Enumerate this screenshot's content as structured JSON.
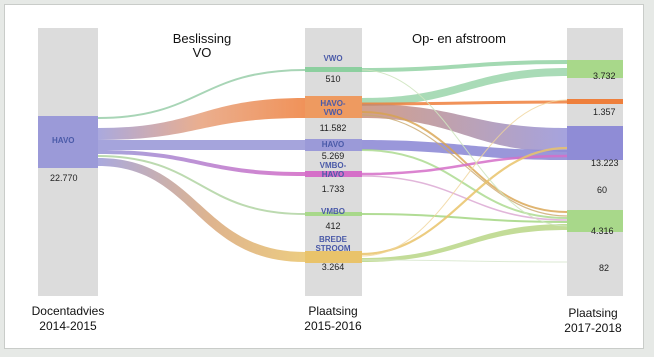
{
  "headers": {
    "beslissing_line1": "Beslissing",
    "beslissing_line2": "VO",
    "opafstroom": "Op- en afstroom"
  },
  "columns": {
    "left_line1": "Docentadvies",
    "left_line2": "2014-2015",
    "mid_line1": "Plaatsing",
    "mid_line2": "2015-2016",
    "right_line1": "Plaatsing",
    "right_line2": "2017-2018"
  },
  "source": {
    "label": "HAVO",
    "value": "22.770"
  },
  "middle_nodes": [
    {
      "label_line1": "VWO",
      "label_line2": "",
      "value": "510",
      "color": "#7fc3a0"
    },
    {
      "label_line1": "HAVO-",
      "label_line2": "VWO",
      "value": "11.582",
      "color": "#e8925a"
    },
    {
      "label_line1": "HAVO",
      "label_line2": "",
      "value": "5.269",
      "color": "#9b9ad8"
    },
    {
      "label_line1": "VMBO-",
      "label_line2": "HAVO",
      "value": "1.733",
      "color": "#cc6fc0"
    },
    {
      "label_line1": "VMBO",
      "label_line2": "",
      "value": "412",
      "color": "#a9cfa0"
    },
    {
      "label_line1": "BREDE",
      "label_line2": "STROOM",
      "value": "3.264",
      "color": "#e6bf66"
    }
  ],
  "right_values": [
    "3.732",
    "1.357",
    "13.223",
    "60",
    "4.316",
    "82"
  ],
  "colors": {
    "column_band": "#dcdcdc",
    "havo": "#8f8cd6",
    "vwo": "#8ccf9f",
    "orange": "#ec8a4f",
    "pink": "#d56fc8",
    "green": "#a8d88a",
    "yellow": "#e9c36a"
  }
}
